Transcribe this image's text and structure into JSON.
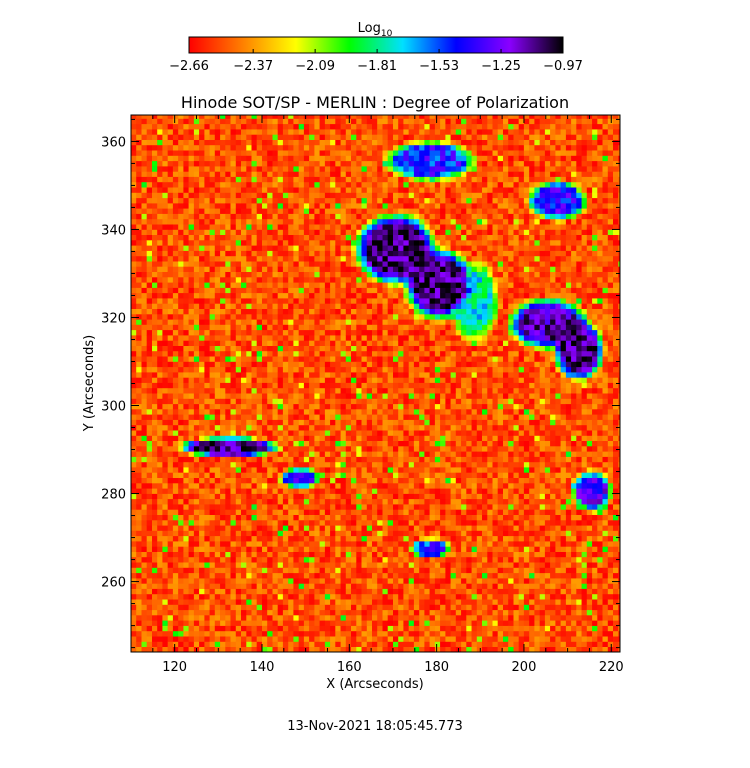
{
  "chart_data": {
    "type": "heatmap",
    "title": "Hinode SOT/SP - MERLIN : Degree of Polarization",
    "xlabel": "X (Arcseconds)",
    "ylabel": "Y (Arcseconds)",
    "xlim": [
      110,
      222
    ],
    "ylim": [
      244,
      366
    ],
    "x_ticks": [
      {
        "value": 120,
        "label": "120"
      },
      {
        "value": 140,
        "label": "140"
      },
      {
        "value": 160,
        "label": "160"
      },
      {
        "value": 180,
        "label": "180"
      },
      {
        "value": 200,
        "label": "200"
      },
      {
        "value": 220,
        "label": "220"
      }
    ],
    "y_ticks": [
      {
        "value": 260,
        "label": "260"
      },
      {
        "value": 280,
        "label": "280"
      },
      {
        "value": 300,
        "label": "300"
      },
      {
        "value": 320,
        "label": "320"
      },
      {
        "value": 340,
        "label": "340"
      },
      {
        "value": 360,
        "label": "360"
      }
    ],
    "colorbar": {
      "title_base": "Log",
      "title_sub": "10",
      "range": [
        -2.66,
        -0.97
      ],
      "ticks": [
        {
          "value": -2.66,
          "label": "−2.66"
        },
        {
          "value": -2.37,
          "label": "−2.37"
        },
        {
          "value": -2.09,
          "label": "−2.09"
        },
        {
          "value": -1.81,
          "label": "−1.81"
        },
        {
          "value": -1.53,
          "label": "−1.53"
        },
        {
          "value": -1.25,
          "label": "−1.25"
        },
        {
          "value": -0.97,
          "label": "−0.97"
        }
      ],
      "colors": [
        "#ff0000",
        "#ff7f00",
        "#ffff00",
        "#00ff00",
        "#00e0ff",
        "#0000ff",
        "#8a00ff",
        "#000000"
      ]
    },
    "regions_high_polarization": [
      {
        "x": 170,
        "y": 335,
        "rx": 8,
        "ry": 7,
        "level": -1.05
      },
      {
        "x": 180,
        "y": 327,
        "rx": 7,
        "ry": 7,
        "level": -1.05
      },
      {
        "x": 188,
        "y": 323,
        "rx": 5,
        "ry": 8,
        "level": -1.75
      },
      {
        "x": 205,
        "y": 318,
        "rx": 8,
        "ry": 5,
        "level": -1.15
      },
      {
        "x": 212,
        "y": 312,
        "rx": 5,
        "ry": 6,
        "level": -1.1
      },
      {
        "x": 178,
        "y": 355,
        "rx": 9,
        "ry": 4,
        "level": -1.45
      },
      {
        "x": 207,
        "y": 346,
        "rx": 6,
        "ry": 4,
        "level": -1.4
      },
      {
        "x": 132,
        "y": 290,
        "rx": 10,
        "ry": 2,
        "level": -1.1
      },
      {
        "x": 148,
        "y": 283,
        "rx": 4,
        "ry": 2,
        "level": -1.4
      },
      {
        "x": 178,
        "y": 267,
        "rx": 4,
        "ry": 2,
        "level": -1.5
      },
      {
        "x": 215,
        "y": 280,
        "rx": 4,
        "ry": 4,
        "level": -1.3
      }
    ],
    "timestamp": "13-Nov-2021 18:05:45.773"
  }
}
